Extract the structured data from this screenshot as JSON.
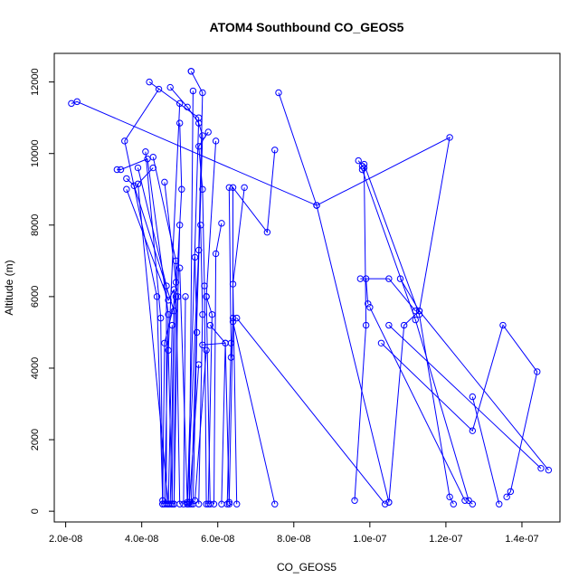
{
  "chart_data": {
    "type": "line",
    "title": "ATOM4 Southbound CO_GEOS5",
    "xlabel": "CO_GEOS5",
    "ylabel": "Altitude (m)",
    "xlim": [
      1.7e-08,
      1.5e-07
    ],
    "ylim": [
      -300,
      12800
    ],
    "x_ticks": [
      2e-08,
      4e-08,
      6e-08,
      8e-08,
      1e-07,
      1.2e-07,
      1.4e-07
    ],
    "x_tick_labels": [
      "2.0e-08",
      "4.0e-08",
      "6.0e-08",
      "8.0e-08",
      "1.0e-07",
      "1.2e-07",
      "1.4e-07"
    ],
    "y_ticks": [
      0,
      2000,
      4000,
      6000,
      8000,
      10000,
      12000
    ],
    "y_tick_labels": [
      "0",
      "2000",
      "4000",
      "6000",
      "8000",
      "10000",
      "12000"
    ],
    "grid": false,
    "legend": "none",
    "series_color": "#0000ff",
    "series": [
      {
        "x": [
          2.15e-08,
          2.3e-08,
          8.6e-08,
          8.6e-08,
          1.05e-07
        ],
        "y": [
          11400,
          11450,
          8550,
          8550,
          250
        ]
      },
      {
        "x": [
          4.45e-08,
          3.55e-08,
          4.4e-08,
          4.55e-08
        ],
        "y": [
          11800,
          10350,
          6000,
          300
        ]
      },
      {
        "x": [
          4.2e-08,
          5.5e-08,
          5.2e-08
        ],
        "y": [
          12000,
          11000,
          200
        ]
      },
      {
        "x": [
          4.75e-08,
          5.2e-08,
          5.5e-08,
          5.6e-08,
          5.3e-08
        ],
        "y": [
          11850,
          11300,
          10850,
          10500,
          200
        ]
      },
      {
        "x": [
          5.3e-08,
          5.3e-08,
          5.6e-08,
          5.5e-08,
          5.2e-08
        ],
        "y": [
          12300,
          12300,
          11700,
          7300,
          200
        ]
      },
      {
        "x": [
          5e-08,
          4.7e-08,
          4.8e-08
        ],
        "y": [
          11400,
          4500,
          200
        ]
      },
      {
        "x": [
          5e-08,
          5.05e-08,
          4.9e-08,
          4.6e-08,
          4.55e-08
        ],
        "y": [
          10850,
          9000,
          6000,
          4700,
          200
        ]
      },
      {
        "x": [
          5.75e-08,
          5.5e-08,
          5.6e-08,
          5.65e-08,
          5.7e-08
        ],
        "y": [
          10600,
          10200,
          9000,
          6300,
          200
        ]
      },
      {
        "x": [
          5.95e-08,
          5.7e-08,
          5.8e-08
        ],
        "y": [
          10350,
          6000,
          200
        ]
      },
      {
        "x": [
          7.6e-08,
          8.6e-08,
          1.21e-07,
          1.13e-07,
          1.09e-07,
          1.05e-07
        ],
        "y": [
          11700,
          8550,
          10450,
          5600,
          5200,
          250
        ]
      },
      {
        "x": [
          7.5e-08,
          7.3e-08,
          6.4e-08,
          6.4e-08,
          6.3e-08
        ],
        "y": [
          10100,
          7800,
          9050,
          5400,
          200
        ]
      },
      {
        "x": [
          6.7e-08,
          6.4e-08,
          6.5e-08
        ],
        "y": [
          9050,
          6350,
          200
        ]
      },
      {
        "x": [
          6.3e-08,
          6.35e-08,
          6.25e-08
        ],
        "y": [
          9050,
          4700,
          200
        ]
      },
      {
        "x": [
          6.1e-08,
          5.95e-08,
          5.9e-08
        ],
        "y": [
          8050,
          7200,
          200
        ]
      },
      {
        "x": [
          3.35e-08,
          3.45e-08,
          4.15e-08,
          4.7e-08,
          4.6e-08
        ],
        "y": [
          9550,
          9550,
          9850,
          5500,
          200
        ]
      },
      {
        "x": [
          3.6e-08,
          3.8e-08,
          4.85e-08,
          4.75e-08
        ],
        "y": [
          9300,
          9100,
          5600,
          200
        ]
      },
      {
        "x": [
          3.6e-08,
          4.7e-08,
          4.85e-08,
          4.8e-08
        ],
        "y": [
          9000,
          5900,
          6200,
          200
        ]
      },
      {
        "x": [
          3.9e-08,
          4.65e-08,
          4.65e-08
        ],
        "y": [
          9600,
          6300,
          200
        ]
      },
      {
        "x": [
          4.1e-08,
          4.5e-08,
          4.55e-08
        ],
        "y": [
          10050,
          5400,
          200
        ]
      },
      {
        "x": [
          4.3e-08,
          4.9e-08,
          4.85e-08
        ],
        "y": [
          9900,
          7000,
          200
        ]
      },
      {
        "x": [
          4.3e-08,
          3.9e-08,
          4.7e-08
        ],
        "y": [
          9600,
          9150,
          200
        ]
      },
      {
        "x": [
          4.6e-08,
          4.9e-08,
          5e-08
        ],
        "y": [
          9200,
          6400,
          200
        ]
      },
      {
        "x": [
          5e-08,
          4.95e-08,
          4.85e-08
        ],
        "y": [
          8000,
          6000,
          200
        ]
      },
      {
        "x": [
          5.15e-08,
          5.1e-08
        ],
        "y": [
          6000,
          200
        ]
      },
      {
        "x": [
          5.4e-08,
          5.45e-08,
          5.35e-08
        ],
        "y": [
          7100,
          5000,
          200
        ]
      },
      {
        "x": [
          5.55e-08,
          5.6e-08,
          5.5e-08
        ],
        "y": [
          8000,
          5500,
          200
        ]
      },
      {
        "x": [
          5.7e-08,
          5.85e-08,
          5.75e-08
        ],
        "y": [
          6000,
          5500,
          200
        ]
      },
      {
        "x": [
          5.8e-08,
          6.2e-08,
          6.1e-08
        ],
        "y": [
          5200,
          4700,
          200
        ]
      },
      {
        "x": [
          6.35e-08,
          6.4e-08,
          7.5e-08
        ],
        "y": [
          4300,
          5300,
          200
        ]
      },
      {
        "x": [
          6.5e-08,
          1.04e-07
        ],
        "y": [
          5400,
          200
        ]
      },
      {
        "x": [
          5.6e-08,
          6.2e-08,
          6.3e-08
        ],
        "y": [
          4650,
          4700,
          250
        ]
      },
      {
        "x": [
          5.5e-08,
          5.25e-08
        ],
        "y": [
          4100,
          200
        ]
      },
      {
        "x": [
          5.7e-08,
          5.4e-08
        ],
        "y": [
          4500,
          300
        ]
      },
      {
        "x": [
          5e-08,
          5.2e-08
        ],
        "y": [
          6800,
          250
        ]
      },
      {
        "x": [
          4.8e-08,
          4.7e-08
        ],
        "y": [
          5200,
          200
        ]
      },
      {
        "x": [
          9.7e-08,
          9.8e-08,
          9.85e-08,
          9.9e-08,
          9.6e-08
        ],
        "y": [
          9800,
          9650,
          9600,
          5200,
          300
        ]
      },
      {
        "x": [
          9.85e-08,
          1.13e-07,
          1.21e-07,
          1.22e-07
        ],
        "y": [
          9700,
          5500,
          400,
          200
        ]
      },
      {
        "x": [
          9.75e-08,
          1.05e-07,
          1.12e-07
        ],
        "y": [
          6500,
          6500,
          5600
        ]
      },
      {
        "x": [
          9.8e-08,
          1.12e-07,
          1.26e-07,
          1.27e-07
        ],
        "y": [
          9550,
          5350,
          300,
          200
        ]
      },
      {
        "x": [
          1.08e-07,
          1.13e-07,
          1.47e-07
        ],
        "y": [
          6500,
          5600,
          1150
        ]
      },
      {
        "x": [
          1.03e-07,
          1.27e-07,
          1.35e-07,
          1.44e-07,
          1.37e-07,
          1.36e-07
        ],
        "y": [
          4700,
          2250,
          5200,
          3900,
          550,
          400
        ]
      },
      {
        "x": [
          1.27e-07,
          1.34e-07
        ],
        "y": [
          3200,
          200
        ]
      },
      {
        "x": [
          1.05e-07,
          1.45e-07
        ],
        "y": [
          5200,
          1200
        ]
      },
      {
        "x": [
          1e-07,
          1.25e-07
        ],
        "y": [
          5700,
          300
        ]
      },
      {
        "x": [
          9.9e-08,
          9.95e-08
        ],
        "y": [
          6500,
          5800
        ]
      },
      {
        "x": [
          5.35e-08,
          5.25e-08
        ],
        "y": [
          11750,
          250
        ]
      }
    ]
  }
}
